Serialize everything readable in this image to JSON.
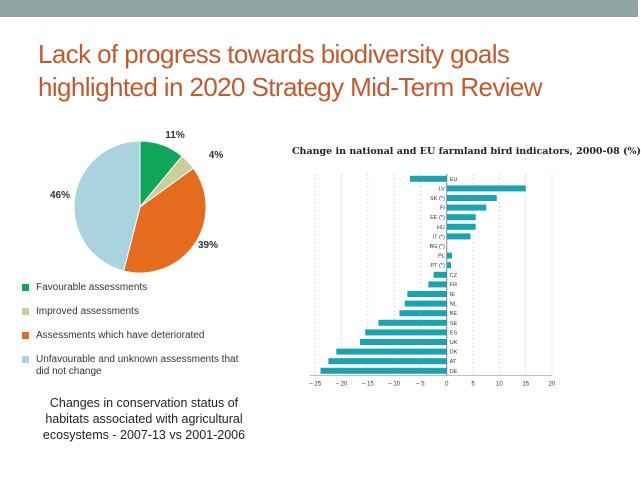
{
  "slide": {
    "title_line1": "Lack of progress towards biodiversity goals",
    "title_line2": "highlighted in 2020 Strategy Mid-Term Review",
    "caption_line1": "Changes in conservation status of",
    "caption_line2": "habitats associated with agricultural",
    "caption_line3": "ecosystems - 2007-13 vs 2001-2006",
    "band_color": "#8da4a0",
    "title_color": "#c25a2e"
  },
  "chart_data": [
    {
      "type": "pie",
      "title": "",
      "slices": [
        {
          "label": "Favourable assessments",
          "value": 11,
          "data_label": "11%",
          "color": "#12a65a"
        },
        {
          "label": "Improved assessments",
          "value": 4,
          "data_label": "4%",
          "color": "#c9cf9c"
        },
        {
          "label": "Assessments which have deteriorated",
          "value": 39,
          "data_label": "39%",
          "color": "#e56b1f"
        },
        {
          "label": "Unfavourable and unknown assessments that did not change",
          "value": 46,
          "data_label": "46%",
          "color": "#a8d3df"
        }
      ],
      "legend_lines": [
        [
          "Favourable assessments"
        ],
        [
          "Improved assessments"
        ],
        [
          "Assessments which have deteriorated"
        ],
        [
          "Unfavourable and unknown assessments that",
          "did not change"
        ]
      ]
    },
    {
      "type": "bar",
      "orientation": "horizontal",
      "title": "Change in national and EU farmland bird indicators, 2000-08 (%)",
      "categories": [
        "EU",
        "LV",
        "SK (*)",
        "FI",
        "EE (*)",
        "HU",
        "IT (*)",
        "BG (*)",
        "PL",
        "PT (*)",
        "CZ",
        "FR",
        "IE",
        "NL",
        "BE",
        "SE",
        "ES",
        "UK",
        "DK",
        "AT",
        "DE"
      ],
      "values": [
        -7,
        15,
        9.5,
        7.5,
        5.5,
        5.5,
        4.5,
        0,
        1,
        0.8,
        -2.5,
        -3.5,
        -7.5,
        -8,
        -9,
        -13,
        -15.5,
        -16.5,
        -21,
        -22.5,
        -24
      ],
      "xlim": [
        -26,
        20
      ],
      "xticks": [
        -25,
        -20,
        -15,
        -10,
        -5,
        0,
        5,
        10,
        15,
        20
      ],
      "xtick_labels": [
        "– 25",
        "– 20",
        "– 15",
        "– 10",
        "– 5",
        "0",
        "5",
        "10",
        "15",
        "20"
      ],
      "bar_color": "#1aa3b0",
      "grid": true
    }
  ]
}
